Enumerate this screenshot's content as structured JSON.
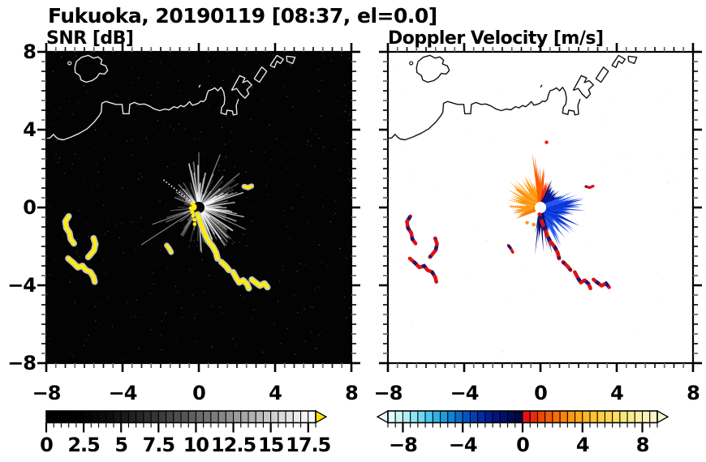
{
  "title": "Fukuoka, 20190119 [08:37, el=0.0]",
  "panels": {
    "snr": {
      "label": "SNR [dB]"
    },
    "doppler": {
      "label": "Doppler Velocity [m/s]"
    }
  },
  "chart_data": {
    "type": "heatmap",
    "suptitle": "Fukuoka, 20190119 [08:37, el=0.0]",
    "xlim": [
      -8,
      8
    ],
    "ylim": [
      -8,
      8
    ],
    "grid": false,
    "seed": 20190119,
    "axes": {
      "x_major_values": [
        -8,
        -4,
        0,
        4,
        8
      ],
      "x_major_labels": [
        "−8",
        "−4",
        "0",
        "4",
        "8"
      ],
      "y_major_values": [
        8,
        4,
        0,
        -4,
        -8
      ],
      "y_major_labels": [
        "8",
        "4",
        "0",
        "−4",
        "−8"
      ],
      "minor_step": 0.5
    },
    "radar_center": [
      0,
      0
    ],
    "panels": {
      "snr": {
        "title": "SNR [dB]",
        "units": "dB",
        "background": "#030303",
        "coast_color": "#e6e6e6",
        "echo_color": "#ffee00",
        "echo_glow": "#cfcfcf",
        "colorbar": {
          "min": 0,
          "max": 18,
          "cells": 36,
          "tick_values": [
            0,
            2.5,
            5,
            7.5,
            10,
            12.5,
            15,
            17.5
          ],
          "tick_labels": [
            "0",
            "2.5",
            "5",
            "7.5",
            "10",
            "12.5",
            "15",
            "17.5"
          ],
          "ramp": "gray",
          "arrows": "right",
          "over_color": "#ffe400"
        },
        "streak_sectors": [
          {
            "a0": -95,
            "a1": 110,
            "n": 95,
            "r1min": 0.7,
            "r1max": 2.5,
            "omin": 0.2,
            "omax": 0.8
          },
          {
            "a0": 110,
            "a1": 175,
            "n": 20,
            "r1min": 0.5,
            "r1max": 1.7,
            "omin": 0.14,
            "omax": 0.5
          },
          {
            "a0": 175,
            "a1": 265,
            "n": 14,
            "r1min": 0.5,
            "r1max": 1.9,
            "omin": 0.1,
            "omax": 0.42
          }
        ],
        "long_rays": [
          {
            "a": 213,
            "len": 3.6
          },
          {
            "a": 200,
            "len": 2.6
          },
          {
            "a": 68,
            "len": 3.0
          },
          {
            "a": 40,
            "len": 2.8
          },
          {
            "a": -25,
            "len": 2.7
          },
          {
            "a": 90,
            "len": 2.9
          }
        ],
        "dotted_ray": {
          "a": 142,
          "r0": 0.45,
          "r1": 2.45,
          "step": 0.17
        },
        "rim_dots": [
          {
            "a": 150,
            "r": 0.38
          },
          {
            "a": 185,
            "r": 0.42
          },
          {
            "a": 215,
            "r": 0.42
          },
          {
            "a": 235,
            "r": 0.52
          },
          {
            "a": 250,
            "r": 0.68
          },
          {
            "a": 256,
            "r": 0.9
          }
        ],
        "noise": {
          "n": 430,
          "omin": 0.05,
          "omax": 0.32,
          "color": "#ffffff"
        }
      },
      "doppler": {
        "title": "Doppler Velocity [m/s]",
        "units": "m/s",
        "background": "#ffffff",
        "coast_color": "#111111",
        "echo_color": "#dc1212",
        "echo_patch": "#18187a",
        "colorbar": {
          "min": -9,
          "max": 9,
          "cells": 36,
          "tick_values": [
            -8,
            -4,
            0,
            4,
            8
          ],
          "tick_labels": [
            "−8",
            "−4",
            "0",
            "4",
            "8"
          ],
          "ramp": "split",
          "arrows": "both"
        },
        "lobes": [
          {
            "a0": 168,
            "a1": 206,
            "n": 16,
            "r1min": 0.55,
            "r1max": 1.5,
            "colors": [
              "#ff8a0a",
              "#f57a02",
              "#ffa024"
            ]
          },
          {
            "a0": 100,
            "a1": 168,
            "n": 30,
            "r1min": 0.7,
            "r1max": 2.1,
            "colors": [
              "#ffa61e",
              "#ff8c10",
              "#ffb42e"
            ]
          },
          {
            "a0": 82,
            "a1": 100,
            "n": 10,
            "r1min": 1.2,
            "r1max": 2.9,
            "colors": [
              "#ff5c00",
              "#ff7408",
              "#f44d02"
            ]
          },
          {
            "a0": 66,
            "a1": 83,
            "n": 8,
            "r1min": 0.9,
            "r1max": 1.8,
            "colors": [
              "#e62310",
              "#ef3a08"
            ]
          },
          {
            "a0": 26,
            "a1": 68,
            "n": 22,
            "r1min": 0.7,
            "r1max": 1.7,
            "colors": [
              "#07139c",
              "#001274",
              "#0b20b6"
            ]
          },
          {
            "a0": -78,
            "a1": 27,
            "n": 60,
            "r1min": 0.8,
            "r1max": 2.4,
            "colors": [
              "#1244e8",
              "#0a35d6",
              "#2458f0",
              "#0c2cc2",
              "#1d4dee"
            ]
          },
          {
            "a0": -103,
            "a1": -72,
            "n": 9,
            "r1min": 1.2,
            "r1max": 2.7,
            "colors": [
              "#000d62",
              "#05137c"
            ]
          }
        ],
        "dotted_trail": {
          "y": 0.05,
          "x0": -1.55,
          "x1": -0.85,
          "step": 0.12,
          "color": "#fe9612"
        },
        "specks": [
          {
            "x": -0.7,
            "y": -0.78,
            "color": "#fe9612"
          },
          {
            "x": -0.35,
            "y": -0.88,
            "color": "#ff8c0c"
          },
          {
            "x": 0.32,
            "y": 3.35,
            "color": "#f21806"
          }
        ],
        "noise": {
          "n": 55,
          "omin": 0.06,
          "omax": 0.22,
          "color": "#777777"
        }
      }
    },
    "colormaps": {
      "gray_ramp": [
        "#000000",
        "#020202",
        "#0d0d0d",
        "#242424",
        "#414141",
        "#636363",
        "#8a8a8a",
        "#b3b3b3",
        "#dcdcdc",
        "#fafafa"
      ],
      "neg_ramp": [
        "#e4fbfa",
        "#b2f0f2",
        "#76dcf0",
        "#38b8ea",
        "#1090d8",
        "#0662c6",
        "#0336b0",
        "#011a8e",
        "#000e64",
        "#000740"
      ],
      "pos_ramp": [
        "#e41212",
        "#ee4406",
        "#f66c04",
        "#fb9210",
        "#feb022",
        "#fec838",
        "#fed856",
        "#fce87c",
        "#fbf0a2",
        "#f9f5c8"
      ]
    },
    "features": {
      "island": [
        [
          -6.5,
          7.2
        ],
        [
          -6.42,
          7.5
        ],
        [
          -6.15,
          7.72
        ],
        [
          -5.8,
          7.82
        ],
        [
          -5.52,
          7.68
        ],
        [
          -5.28,
          7.74
        ],
        [
          -5.08,
          7.58
        ],
        [
          -5.14,
          7.38
        ],
        [
          -4.88,
          7.28
        ],
        [
          -4.78,
          7.04
        ],
        [
          -4.95,
          6.86
        ],
        [
          -5.2,
          6.9
        ],
        [
          -5.36,
          6.68
        ],
        [
          -5.6,
          6.52
        ],
        [
          -5.92,
          6.44
        ],
        [
          -6.18,
          6.56
        ],
        [
          -6.24,
          6.78
        ],
        [
          -6.48,
          6.94
        ],
        [
          -6.5,
          7.2
        ]
      ],
      "island_dot": [
        -6.78,
        7.42
      ],
      "coast_main": [
        [
          -8.0,
          3.55
        ],
        [
          -7.8,
          3.58
        ],
        [
          -7.62,
          3.76
        ],
        [
          -7.5,
          3.62
        ],
        [
          -7.35,
          3.52
        ],
        [
          -7.1,
          3.48
        ],
        [
          -6.7,
          3.62
        ],
        [
          -6.25,
          3.82
        ],
        [
          -5.85,
          4.05
        ],
        [
          -5.5,
          4.38
        ],
        [
          -5.22,
          4.72
        ],
        [
          -5.12,
          4.9
        ],
        [
          -5.08,
          5.36
        ],
        [
          -4.88,
          5.45
        ],
        [
          -4.62,
          5.38
        ],
        [
          -4.35,
          5.3
        ],
        [
          -4.02,
          5.3
        ],
        [
          -3.97,
          4.82
        ],
        [
          -3.66,
          4.82
        ],
        [
          -3.62,
          5.3
        ],
        [
          -3.38,
          5.4
        ],
        [
          -3.12,
          5.3
        ],
        [
          -2.86,
          5.32
        ],
        [
          -2.6,
          5.22
        ],
        [
          -2.32,
          5.06
        ],
        [
          -2.05,
          4.98
        ],
        [
          -1.8,
          5.06
        ],
        [
          -1.55,
          5.02
        ],
        [
          -1.32,
          5.18
        ],
        [
          -1.12,
          5.12
        ],
        [
          -0.95,
          5.24
        ],
        [
          -0.78,
          5.18
        ],
        [
          -0.62,
          5.3
        ],
        [
          -0.48,
          5.44
        ],
        [
          -0.34,
          5.26
        ],
        [
          -0.18,
          5.3
        ],
        [
          -0.02,
          5.36
        ],
        [
          0.1,
          5.47
        ],
        [
          0.24,
          5.44
        ],
        [
          0.36,
          5.56
        ],
        [
          0.42,
          5.8
        ],
        [
          0.5,
          6.0
        ],
        [
          0.68,
          6.06
        ],
        [
          0.84,
          6.15
        ],
        [
          1.0,
          6.0
        ],
        [
          1.16,
          6.18
        ],
        [
          1.3,
          5.95
        ],
        [
          1.36,
          5.62
        ],
        [
          1.33,
          5.32
        ],
        [
          1.2,
          5.15
        ],
        [
          1.16,
          4.86
        ],
        [
          1.44,
          4.78
        ],
        [
          1.48,
          5.0
        ],
        [
          1.76,
          4.96
        ],
        [
          1.8,
          4.76
        ],
        [
          2.0,
          4.8
        ],
        [
          1.96,
          5.24
        ],
        [
          2.08,
          5.58
        ]
      ],
      "piers": [
        [
          [
            1.72,
            6.02
          ],
          [
            2.14,
            6.78
          ],
          [
            2.42,
            6.66
          ],
          [
            2.3,
            6.42
          ],
          [
            2.55,
            6.52
          ],
          [
            2.78,
            6.3
          ],
          [
            2.52,
            6.06
          ],
          [
            2.62,
            5.84
          ],
          [
            2.42,
            5.62
          ],
          [
            2.2,
            5.82
          ],
          [
            1.98,
            6.12
          ],
          [
            1.72,
            6.02
          ]
        ],
        [
          [
            2.9,
            6.62
          ],
          [
            3.3,
            7.22
          ],
          [
            3.56,
            7.0
          ],
          [
            3.18,
            6.44
          ],
          [
            2.9,
            6.62
          ]
        ],
        [
          [
            3.74,
            7.3
          ],
          [
            4.1,
            7.82
          ],
          [
            4.44,
            7.62
          ],
          [
            4.28,
            7.4
          ],
          [
            4.1,
            7.52
          ],
          [
            3.96,
            7.2
          ],
          [
            3.74,
            7.3
          ]
        ],
        [
          [
            4.6,
            7.78
          ],
          [
            5.05,
            7.72
          ],
          [
            4.92,
            7.4
          ],
          [
            4.62,
            7.52
          ],
          [
            4.6,
            7.78
          ]
        ]
      ],
      "tiny_marks": [
        [
          [
            0.0,
            6.18
          ],
          [
            0.08,
            6.3
          ]
        ]
      ],
      "echo_chains": [
        {
          "id": "west1",
          "w": 4.2,
          "pts": [
            [
              -6.82,
              -0.45
            ],
            [
              -7.0,
              -0.72
            ],
            [
              -6.95,
              -1.05
            ],
            [
              -6.78,
              -1.3
            ],
            [
              -6.72,
              -1.62
            ],
            [
              -6.55,
              -1.85
            ]
          ]
        },
        {
          "id": "west2",
          "w": 4.2,
          "pts": [
            [
              -5.52,
              -1.58
            ],
            [
              -5.42,
              -1.88
            ],
            [
              -5.5,
              -2.2
            ],
            [
              -5.68,
              -2.42
            ],
            [
              -5.8,
              -2.55
            ]
          ]
        },
        {
          "id": "west3",
          "w": 4.2,
          "pts": [
            [
              -6.85,
              -2.62
            ],
            [
              -6.58,
              -2.85
            ],
            [
              -6.35,
              -3.08
            ],
            [
              -6.1,
              -3.0
            ],
            [
              -5.92,
              -3.22
            ],
            [
              -5.68,
              -3.32
            ],
            [
              -5.52,
              -3.58
            ],
            [
              -5.46,
              -3.82
            ]
          ]
        },
        {
          "id": "main1",
          "w": 4.4,
          "pts": [
            [
              -0.05,
              -0.35
            ],
            [
              0.08,
              -0.75
            ],
            [
              0.22,
              -1.1
            ],
            [
              0.36,
              -1.45
            ],
            [
              0.52,
              -1.75
            ],
            [
              0.74,
              -2.02
            ],
            [
              0.9,
              -2.32
            ],
            [
              0.98,
              -2.62
            ]
          ]
        },
        {
          "id": "main2",
          "w": 4.2,
          "pts": [
            [
              1.18,
              -2.8
            ],
            [
              1.42,
              -3.02
            ],
            [
              1.58,
              -3.22
            ]
          ]
        },
        {
          "id": "main3",
          "w": 4.2,
          "pts": [
            [
              1.8,
              -3.32
            ],
            [
              1.96,
              -3.62
            ],
            [
              2.12,
              -3.86
            ],
            [
              2.32,
              -3.74
            ],
            [
              2.52,
              -3.92
            ],
            [
              2.62,
              -4.16
            ]
          ]
        },
        {
          "id": "main4",
          "w": 4.2,
          "pts": [
            [
              2.78,
              -3.7
            ],
            [
              2.98,
              -3.86
            ],
            [
              3.2,
              -4.02
            ],
            [
              3.44,
              -3.9
            ],
            [
              3.6,
              -4.1
            ]
          ]
        },
        {
          "id": "dash1",
          "w": 3.2,
          "pts": [
            [
              -1.68,
              -1.95
            ],
            [
              -1.55,
              -2.12
            ],
            [
              -1.45,
              -2.3
            ]
          ]
        },
        {
          "id": "ne_dash",
          "w": 3.0,
          "pts": [
            [
              2.38,
              1.08
            ],
            [
              2.58,
              1.02
            ],
            [
              2.76,
              1.1
            ]
          ]
        }
      ],
      "hole_radius": 0.3
    }
  }
}
